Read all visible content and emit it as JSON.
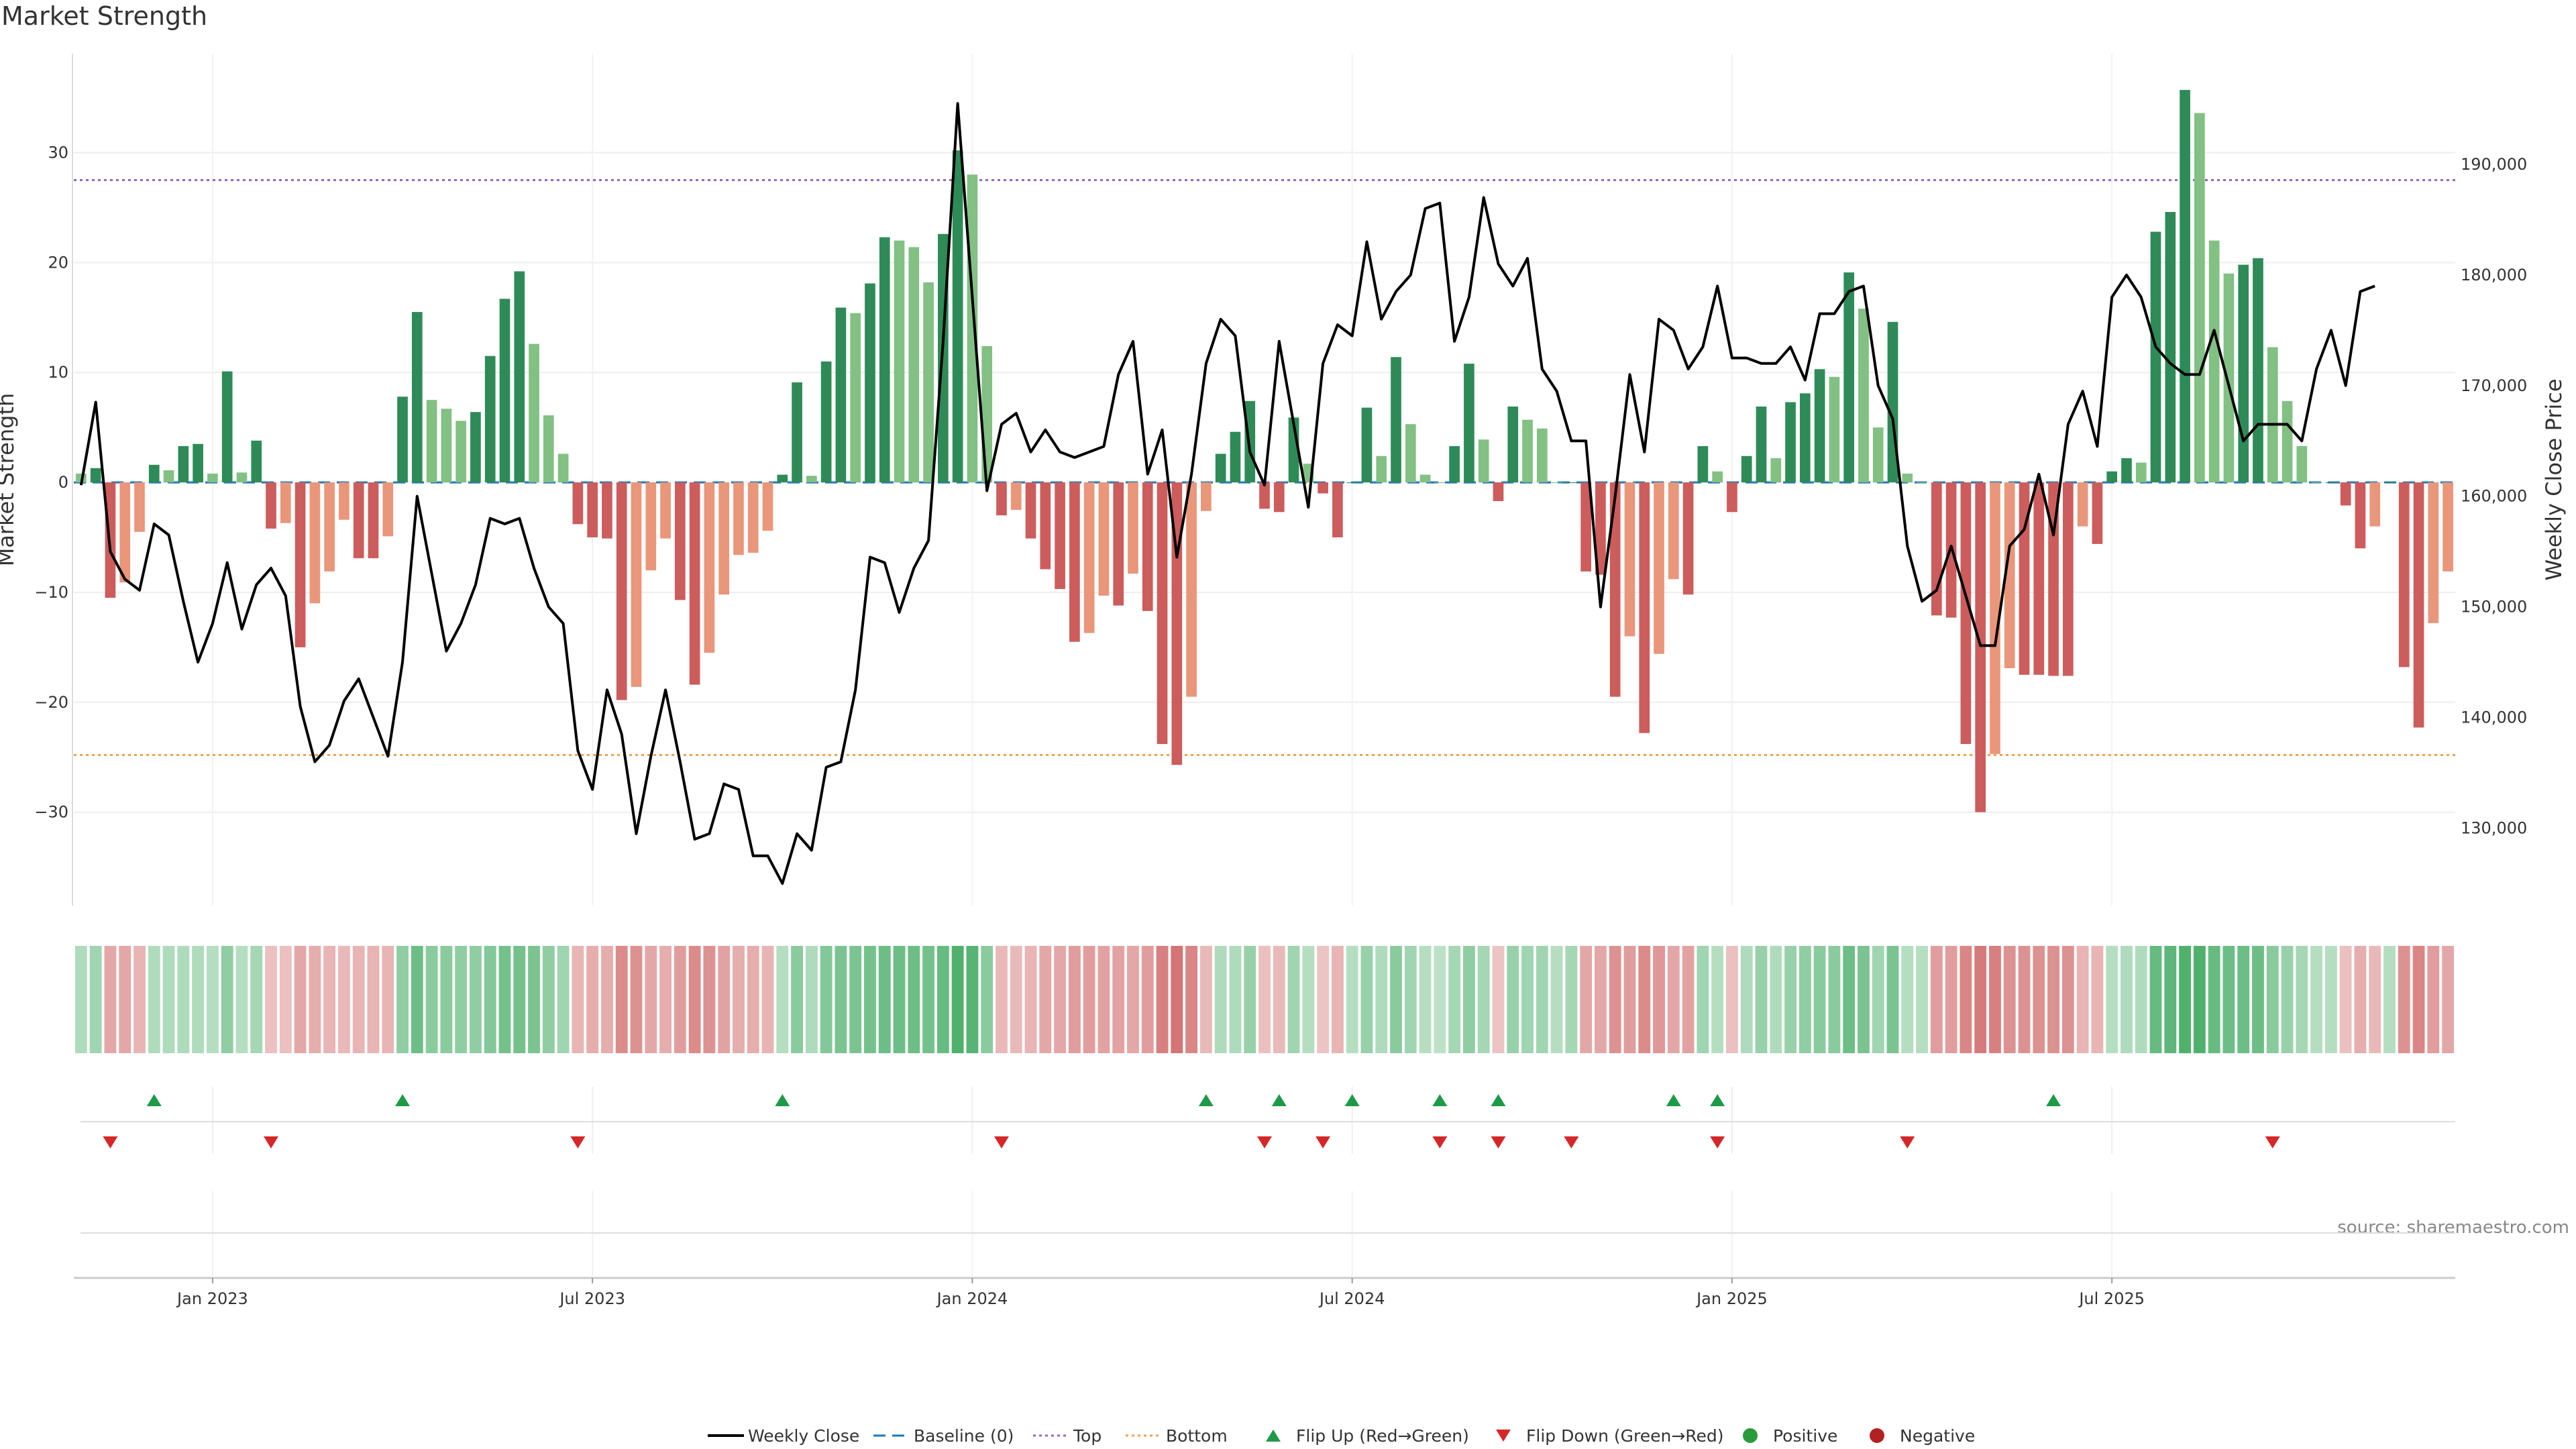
{
  "title": "Market Strength",
  "source": "source: sharemaestro.com",
  "colors": {
    "strong_pos": "#2e8b57",
    "weak_pos": "#82c083",
    "strong_neg": "#cd5c5c",
    "weak_neg": "#e9967a",
    "close_line": "#000000",
    "top_line": "#9467bd",
    "bottom_line": "#f0a050",
    "baseline": "#1f77b4",
    "flip_up": "#1e9a46",
    "flip_down": "#d62728",
    "heat_pos": "#31a354",
    "heat_neg": "#cd5c5c"
  },
  "chart_data": {
    "type": "bar+line",
    "ylabel": "Market Strength",
    "y2label": "Weekly Close Price",
    "ylim": [
      -38.5,
      39
    ],
    "y2lim": [
      123000,
      200000
    ],
    "yticks": [
      -30,
      -20,
      -10,
      0,
      10,
      20,
      30
    ],
    "y2ticks": [
      130000,
      140000,
      150000,
      160000,
      170000,
      180000,
      190000
    ],
    "y2ticklabels": [
      "130,000",
      "140,000",
      "150,000",
      "160,000",
      "170,000",
      "180,000",
      "190,000"
    ],
    "top": 27.5,
    "bottom": -24.8,
    "baseline": 0,
    "xticks": [
      "Jan 2023",
      "Jul 2023",
      "Jan 2024",
      "Jul 2024",
      "Jan 2025",
      "Jul 2025"
    ],
    "xtick_week_index": [
      9,
      35,
      61,
      87,
      113,
      139
    ],
    "strength": [
      0.8,
      1.3,
      -10.5,
      -9.1,
      -4.5,
      1.6,
      1.1,
      3.3,
      3.5,
      0.8,
      10.1,
      0.9,
      3.8,
      -4.2,
      -3.7,
      -15,
      -11,
      -8.1,
      -3.4,
      -6.9,
      -6.9,
      -4.9,
      7.8,
      15.5,
      7.5,
      6.7,
      5.6,
      6.4,
      11.5,
      16.7,
      19.2,
      12.6,
      6.1,
      2.6,
      -3.8,
      -5,
      -5.1,
      -19.8,
      -18.6,
      -8,
      -5.1,
      -10.7,
      -18.4,
      -15.5,
      -10.2,
      -6.6,
      -6.4,
      -4.4,
      0.7,
      9.1,
      0.6,
      11,
      15.9,
      15.4,
      18.1,
      22.3,
      22,
      21.4,
      18.2,
      22.6,
      30.2,
      28,
      12.4,
      -3,
      -2.5,
      -5.1,
      -7.9,
      -9.7,
      -14.5,
      -13.7,
      -10.3,
      -11.2,
      -8.3,
      -11.7,
      -23.8,
      -25.7,
      -19.5,
      -2.6,
      2.6,
      4.6,
      7.4,
      -2.4,
      -2.7,
      5.9,
      1.7,
      -1,
      -5,
      0,
      6.8,
      2.4,
      11.4,
      5.3,
      0.7,
      0,
      3.3,
      10.8,
      3.9,
      -1.7,
      6.9,
      5.7,
      4.9,
      0,
      0,
      -8.1,
      -8.4,
      -19.5,
      -14,
      -22.8,
      -15.6,
      -8.8,
      -10.2,
      3.3,
      1,
      -2.7,
      2.4,
      6.9,
      2.2,
      7.3,
      8.1,
      10.3,
      9.6,
      19.1,
      15.8,
      5,
      14.6,
      0.8,
      0,
      -12.1,
      -12.3,
      -23.8,
      -30,
      -24.7,
      -16.9,
      -17.5,
      -17.5,
      -17.6,
      -17.6,
      -4,
      -5.6,
      1,
      2.2,
      1.8,
      22.8,
      24.6,
      35.7,
      33.6,
      22,
      19,
      19.8,
      20.4,
      12.3,
      7.4,
      3.3,
      0,
      0,
      -2.1,
      -6,
      -4,
      0,
      -16.8,
      -22.3,
      -12.8,
      -8.1
    ],
    "weekly_close": [
      161000,
      168500,
      155000,
      152500,
      151500,
      157500,
      156500,
      150500,
      145000,
      148500,
      154000,
      148000,
      152000,
      153500,
      151000,
      141000,
      136000,
      137500,
      141500,
      143500,
      140000,
      136500,
      145000,
      160000,
      153000,
      146000,
      148500,
      152000,
      158000,
      157500,
      158000,
      153500,
      150000,
      148500,
      137000,
      133500,
      142500,
      138500,
      129500,
      136500,
      142500,
      136000,
      129000,
      129500,
      134000,
      133500,
      127500,
      127500,
      125000,
      129500,
      128000,
      135500,
      136000,
      142500,
      154500,
      154000,
      149500,
      153500,
      156000,
      174000,
      195500,
      178000,
      160500,
      166500,
      167500,
      164000,
      166000,
      164000,
      163500,
      164000,
      164500,
      171000,
      174000,
      162000,
      166000,
      154500,
      162000,
      172000,
      176000,
      174500,
      164000,
      161000,
      174000,
      166500,
      159000,
      172000,
      175500,
      174500,
      183000,
      176000,
      178500,
      180000,
      186000,
      186500,
      174000,
      178000,
      187000,
      181000,
      179000,
      181500,
      171500,
      169500,
      165000,
      165000,
      150000,
      160000,
      171000,
      164000,
      176000,
      175000,
      171500,
      173500,
      179000,
      172500,
      172500,
      172000,
      172000,
      173500,
      170500,
      176500,
      176500,
      178500,
      179000,
      170000,
      167000,
      155500,
      150500,
      151500,
      155500,
      151000,
      146500,
      146500,
      155500,
      157000,
      162000,
      156500,
      166500,
      169500,
      164500,
      178000,
      180000,
      178000,
      173500,
      172000,
      171000,
      171000,
      175000,
      170000,
      165000,
      166500,
      166500,
      166500,
      165000,
      171500,
      175000,
      170000,
      178500,
      179000
    ],
    "heat_level": [
      0.35,
      0.45,
      0.55,
      0.55,
      0.45,
      0.35,
      0.35,
      0.35,
      0.35,
      0.3,
      0.55,
      0.3,
      0.4,
      0.35,
      0.35,
      0.55,
      0.5,
      0.45,
      0.4,
      0.45,
      0.45,
      0.45,
      0.55,
      0.8,
      0.6,
      0.6,
      0.55,
      0.55,
      0.65,
      0.75,
      0.75,
      0.7,
      0.55,
      0.45,
      0.45,
      0.5,
      0.5,
      0.8,
      0.75,
      0.55,
      0.5,
      0.65,
      0.8,
      0.75,
      0.6,
      0.5,
      0.5,
      0.45,
      0.3,
      0.6,
      0.35,
      0.65,
      0.7,
      0.7,
      0.75,
      0.8,
      0.8,
      0.8,
      0.75,
      0.85,
      1.0,
      0.95,
      0.6,
      0.4,
      0.4,
      0.45,
      0.55,
      0.55,
      0.65,
      0.65,
      0.6,
      0.6,
      0.55,
      0.65,
      0.9,
      1.0,
      0.85,
      0.4,
      0.35,
      0.35,
      0.5,
      0.35,
      0.4,
      0.45,
      0.3,
      0.3,
      0.45,
      0.3,
      0.5,
      0.35,
      0.6,
      0.45,
      0.3,
      0.25,
      0.4,
      0.55,
      0.4,
      0.3,
      0.5,
      0.45,
      0.45,
      0.3,
      0.4,
      0.55,
      0.55,
      0.75,
      0.65,
      0.8,
      0.7,
      0.55,
      0.6,
      0.45,
      0.3,
      0.35,
      0.35,
      0.5,
      0.35,
      0.5,
      0.55,
      0.6,
      0.6,
      0.8,
      0.7,
      0.45,
      0.7,
      0.3,
      0.3,
      0.65,
      0.65,
      0.85,
      0.95,
      0.9,
      0.75,
      0.75,
      0.75,
      0.75,
      0.75,
      0.45,
      0.45,
      0.3,
      0.35,
      0.35,
      0.85,
      0.9,
      1.0,
      1.0,
      0.85,
      0.8,
      0.8,
      0.8,
      0.6,
      0.5,
      0.4,
      0.3,
      0.3,
      0.35,
      0.5,
      0.4,
      0.3,
      0.75,
      0.85,
      0.65,
      0.55
    ],
    "flip_up_weeks": [
      5,
      22,
      48,
      77,
      82,
      87,
      93,
      97,
      109,
      112,
      135
    ],
    "flip_down_weeks": [
      2,
      13,
      34,
      63,
      81,
      85,
      93,
      97,
      102,
      112,
      125,
      150
    ]
  },
  "legend": [
    {
      "label": "Weekly Close",
      "marker": "line"
    },
    {
      "label": "Baseline (0)",
      "marker": "dash"
    },
    {
      "label": "Top",
      "marker": "dot-purple"
    },
    {
      "label": "Bottom",
      "marker": "dot-orange"
    },
    {
      "label": "Flip Up (Red→Green)",
      "marker": "tri-up"
    },
    {
      "label": "Flip Down (Green→Red)",
      "marker": "tri-down"
    },
    {
      "label": "Positive",
      "marker": "circle-green"
    },
    {
      "label": "Negative",
      "marker": "circle-red"
    }
  ]
}
